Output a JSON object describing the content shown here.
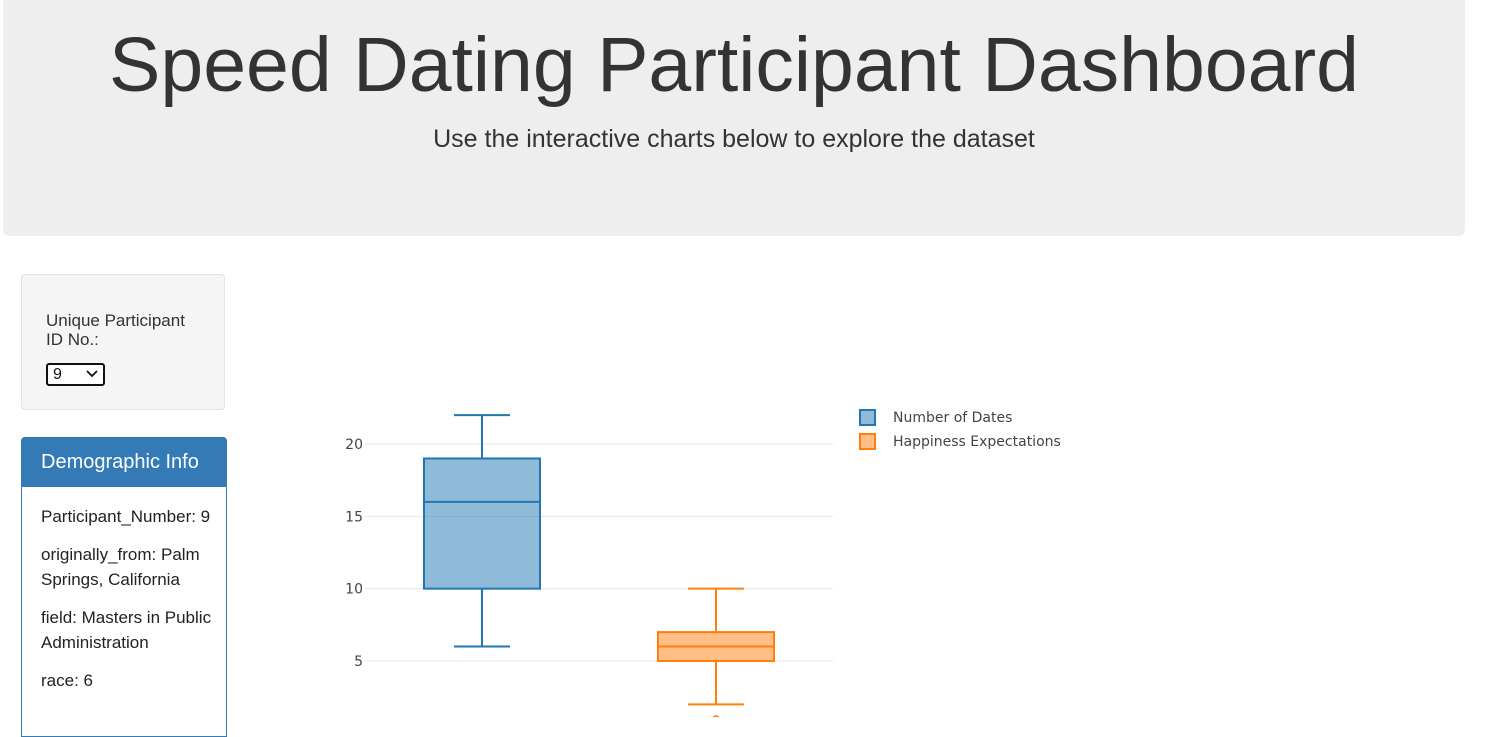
{
  "header": {
    "title": "Speed Dating Participant Dashboard",
    "subtitle": "Use the interactive charts below to explore the dataset"
  },
  "selector": {
    "label": "Unique Participant ID No.:",
    "selected_value": "9"
  },
  "demographic_panel": {
    "title": "Demographic Info",
    "lines": [
      "Participant_Number: 9",
      "originally_from: Palm Springs, California",
      "field: Masters in Public Administration",
      "race: 6"
    ]
  },
  "colors": {
    "jumbotron_bg": "#eeeeee",
    "panel_blue": "#337ab7",
    "series_blue": "#1f77b4",
    "series_orange": "#ff7f0e"
  },
  "icons": {
    "select_chevron": "chevron-down-icon"
  },
  "chart_data": {
    "type": "box",
    "yticks": [
      5,
      10,
      15,
      20
    ],
    "ylim": [
      1.5,
      24
    ],
    "grid": true,
    "legend_position": "top-right",
    "series": [
      {
        "name": "Number of Dates",
        "color": "#1f77b4",
        "lower_whisker": 6,
        "q1": 10,
        "median": 16,
        "q3": 19,
        "upper_whisker": 22
      },
      {
        "name": "Happiness Expectations",
        "color": "#ff7f0e",
        "lower_whisker": 2,
        "q1": 5,
        "median": 6,
        "q3": 7,
        "upper_whisker": 10,
        "outliers": [
          1
        ]
      }
    ]
  }
}
